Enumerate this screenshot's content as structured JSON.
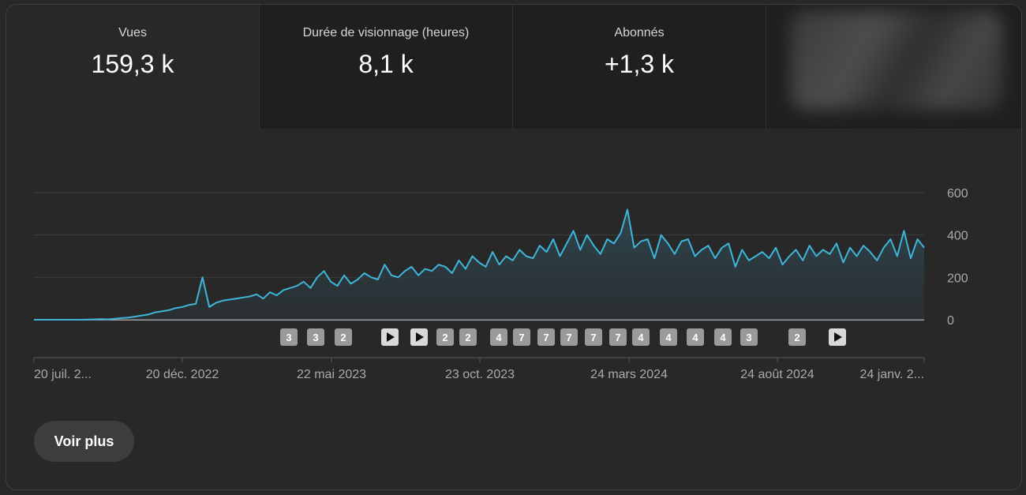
{
  "metrics": [
    {
      "label": "Vues",
      "value": "159,3 k"
    },
    {
      "label": "Durée de visionnage (heures)",
      "value": "8,1 k"
    },
    {
      "label": "Abonnés",
      "value": "+1,3 k"
    }
  ],
  "button": {
    "label": "Voir plus"
  },
  "colors": {
    "line": "#3fb5d9",
    "area_top": "#2b3a40",
    "background": "#282828",
    "grid": "#3d3d3d"
  },
  "markers": [
    {
      "label": "3"
    },
    {
      "label": "3"
    },
    {
      "label": "2"
    },
    {
      "label": "▶",
      "icon": "play-icon"
    },
    {
      "label": "▶",
      "icon": "play-icon"
    },
    {
      "label": "2"
    },
    {
      "label": "2"
    },
    {
      "label": "4"
    },
    {
      "label": "7"
    },
    {
      "label": "7"
    },
    {
      "label": "7"
    },
    {
      "label": "7"
    },
    {
      "label": "7"
    },
    {
      "label": "4"
    },
    {
      "label": "4"
    },
    {
      "label": "4"
    },
    {
      "label": "4"
    },
    {
      "label": "3"
    },
    {
      "label": "2"
    },
    {
      "label": "▶",
      "icon": "play-icon"
    }
  ],
  "chart_data": {
    "type": "area",
    "title": "",
    "xlabel": "",
    "ylabel": "",
    "ylim": [
      0,
      600
    ],
    "yticks": [
      "0",
      "200",
      "400",
      "600"
    ],
    "xticks": [
      "20 juil. 2...",
      "20 déc. 2022",
      "22 mai 2023",
      "23 oct. 2023",
      "24 mars 2024",
      "24 août 2024",
      "24 janv. 2..."
    ],
    "grid": true,
    "x_start": "2022-07-20",
    "x_end": "2025-01-31",
    "series": [
      {
        "values": [
          0,
          0,
          0,
          0,
          0,
          0,
          0,
          0,
          1,
          2,
          3,
          2,
          5,
          8,
          10,
          15,
          20,
          25,
          35,
          40,
          45,
          55,
          60,
          70,
          75,
          200,
          60,
          80,
          90,
          95,
          100,
          105,
          110,
          120,
          100,
          130,
          115,
          140,
          150,
          160,
          180,
          150,
          200,
          230,
          180,
          160,
          210,
          170,
          190,
          220,
          200,
          190,
          260,
          210,
          200,
          230,
          250,
          210,
          240,
          230,
          260,
          250,
          220,
          280,
          240,
          300,
          270,
          250,
          320,
          260,
          300,
          280,
          330,
          300,
          290,
          350,
          320,
          380,
          300,
          360,
          420,
          330,
          400,
          350,
          310,
          380,
          360,
          410,
          520,
          340,
          370,
          380,
          290,
          400,
          360,
          310,
          370,
          380,
          300,
          330,
          350,
          290,
          340,
          360,
          250,
          330,
          280,
          300,
          320,
          290,
          340,
          260,
          300,
          330,
          280,
          350,
          300,
          330,
          310,
          360,
          270,
          340,
          300,
          350,
          320,
          280,
          340,
          380,
          300,
          420,
          290,
          380,
          340
        ]
      }
    ]
  }
}
